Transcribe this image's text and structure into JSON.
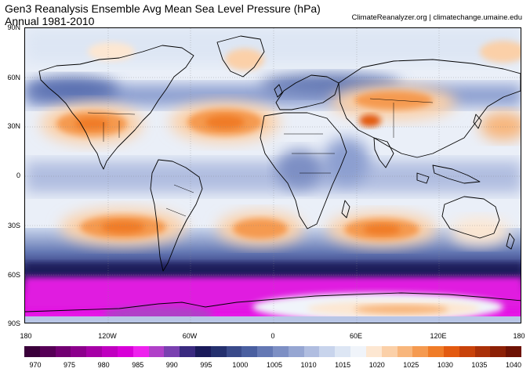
{
  "title_line1": "Gen3 Reanalysis Ensemble Avg Mean Sea Level Pressure (hPa)",
  "title_line2": "Annual 1981-2010",
  "credit": "ClimateReanalyzer.org | climatechange.umaine.edu",
  "lat_ticks": [
    "90N",
    "60N",
    "30N",
    "0",
    "30S",
    "60S",
    "90S"
  ],
  "lon_ticks": [
    "180",
    "120W",
    "60W",
    "0",
    "60E",
    "120E",
    "180"
  ],
  "colorbar": {
    "ticks": [
      "970",
      "975",
      "980",
      "985",
      "990",
      "995",
      "1000",
      "1005",
      "1010",
      "1015",
      "1020",
      "1025",
      "1030",
      "1035",
      "1040"
    ],
    "colors": [
      "#3a003a",
      "#560056",
      "#720072",
      "#8c008c",
      "#a600a6",
      "#c000c0",
      "#d800d8",
      "#ee22ee",
      "#b040c8",
      "#7a40b0",
      "#3a2a80",
      "#1a1a5a",
      "#24306e",
      "#3a4a8a",
      "#4a5fa0",
      "#6478b4",
      "#7d8fc4",
      "#96a6d2",
      "#b0bde0",
      "#c8d4ec",
      "#dde6f4",
      "#f0f4fa",
      "#fde7d2",
      "#fbd0a8",
      "#f8b67c",
      "#f59a50",
      "#f07c28",
      "#e35a10",
      "#c8420a",
      "#aa3008",
      "#8c2006",
      "#6e1204"
    ]
  },
  "icons": {
    "map": "world-map-icon"
  }
}
